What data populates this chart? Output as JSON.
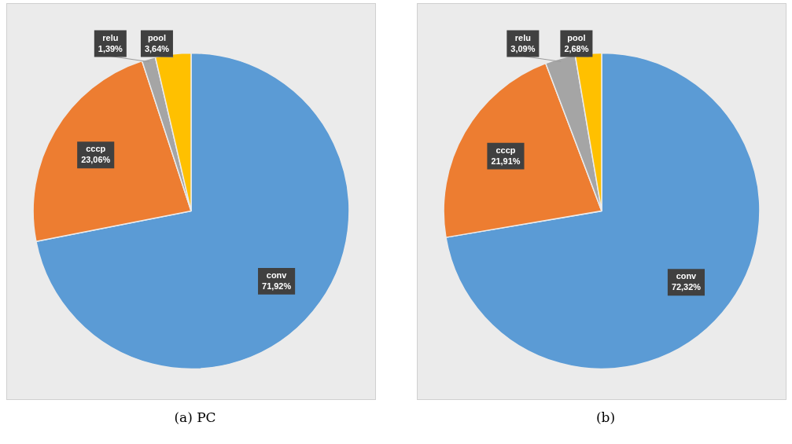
{
  "chart_data": [
    {
      "type": "pie",
      "title": "(a) PC",
      "categories": [
        "conv",
        "cccp",
        "relu",
        "pool"
      ],
      "values": [
        71.92,
        23.06,
        1.39,
        3.64
      ],
      "value_labels": [
        "71,92%",
        "23,06%",
        "1,39%",
        "3,64%"
      ],
      "colors": [
        "#5b9bd5",
        "#ed7d31",
        "#a5a5a5",
        "#ffc000"
      ],
      "legend": false
    },
    {
      "type": "pie",
      "title": "(b)",
      "categories": [
        "conv",
        "cccp",
        "relu",
        "pool"
      ],
      "values": [
        72.32,
        21.91,
        3.09,
        2.68
      ],
      "value_labels": [
        "72,32%",
        "21,91%",
        "3,09%",
        "2,68%"
      ],
      "colors": [
        "#5b9bd5",
        "#ed7d31",
        "#a5a5a5",
        "#ffc000"
      ],
      "legend": false
    }
  ]
}
